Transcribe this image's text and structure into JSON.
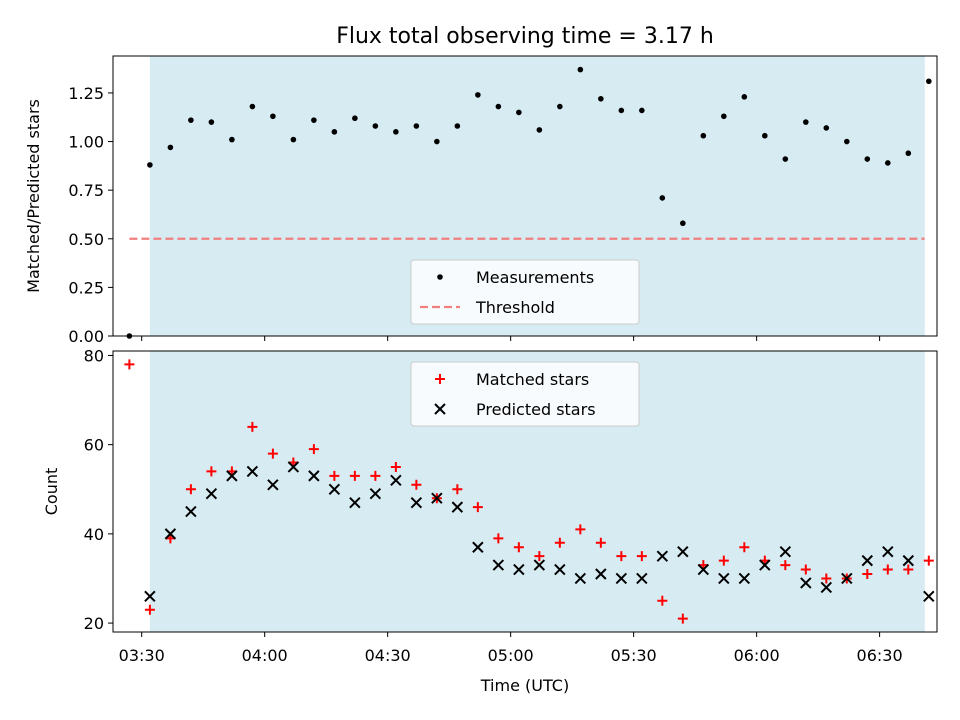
{
  "title": "Flux total observing time = 3.17 h",
  "colors": {
    "shade": "#add8e6",
    "measurement": "#000000",
    "threshold": "#f08080",
    "matched": "#ff0000",
    "predicted": "#000000"
  },
  "chart_data": [
    {
      "type": "scatter",
      "id": "ratio",
      "title": "Flux total observing time = 3.17 h",
      "xlabel": "",
      "ylabel": "Matched/Predicted stars",
      "xlim": [
        "03:23",
        "06:44"
      ],
      "ylim": [
        0,
        1.44
      ],
      "grid": false,
      "legend": "lower-center",
      "shaded_interval": [
        "03:32",
        "06:41"
      ],
      "yticks": [
        0.0,
        0.25,
        0.5,
        0.75,
        1.0,
        1.25
      ],
      "ytick_labels": [
        "0.00",
        "0.25",
        "0.50",
        "0.75",
        "1.00",
        "1.25"
      ],
      "threshold": {
        "name": "Threshold",
        "value": 0.5,
        "x_range": [
          "03:27",
          "06:41"
        ]
      },
      "series": [
        {
          "name": "Measurements",
          "x": [
            "03:27",
            "03:32",
            "03:37",
            "03:42",
            "03:47",
            "03:52",
            "03:57",
            "04:02",
            "04:07",
            "04:12",
            "04:17",
            "04:22",
            "04:27",
            "04:32",
            "04:37",
            "04:42",
            "04:47",
            "04:52",
            "04:57",
            "05:02",
            "05:07",
            "05:12",
            "05:17",
            "05:22",
            "05:27",
            "05:32",
            "05:37",
            "05:42",
            "05:47",
            "05:52",
            "05:57",
            "06:02",
            "06:07",
            "06:12",
            "06:17",
            "06:22",
            "06:27",
            "06:32",
            "06:37",
            "06:42"
          ],
          "y": [
            0.0,
            0.88,
            0.97,
            1.11,
            1.1,
            1.01,
            1.18,
            1.13,
            1.01,
            1.11,
            1.05,
            1.12,
            1.08,
            1.05,
            1.08,
            1.0,
            1.08,
            1.24,
            1.18,
            1.15,
            1.06,
            1.18,
            1.37,
            1.22,
            1.16,
            1.16,
            0.71,
            0.58,
            1.03,
            1.13,
            1.23,
            1.03,
            0.91,
            1.1,
            1.07,
            1.0,
            0.91,
            0.89,
            0.94,
            1.31
          ]
        }
      ]
    },
    {
      "type": "scatter",
      "id": "counts",
      "xlabel": "Time (UTC)",
      "ylabel": "Count",
      "xlim": [
        "03:23",
        "06:44"
      ],
      "ylim": [
        18,
        81
      ],
      "grid": false,
      "legend": "upper-center",
      "shaded_interval": [
        "03:32",
        "06:41"
      ],
      "yticks": [
        20,
        40,
        60,
        80
      ],
      "ytick_labels": [
        "20",
        "40",
        "60",
        "80"
      ],
      "xticks": [
        "03:30",
        "04:00",
        "04:30",
        "05:00",
        "05:30",
        "06:00",
        "06:30"
      ],
      "series": [
        {
          "name": "Matched stars",
          "x": [
            "03:27",
            "03:32",
            "03:37",
            "03:42",
            "03:47",
            "03:52",
            "03:57",
            "04:02",
            "04:07",
            "04:12",
            "04:17",
            "04:22",
            "04:27",
            "04:32",
            "04:37",
            "04:42",
            "04:47",
            "04:52",
            "04:57",
            "05:02",
            "05:07",
            "05:12",
            "05:17",
            "05:22",
            "05:27",
            "05:32",
            "05:37",
            "05:42",
            "05:47",
            "05:52",
            "05:57",
            "06:02",
            "06:07",
            "06:12",
            "06:17",
            "06:22",
            "06:27",
            "06:32",
            "06:37",
            "06:42"
          ],
          "y": [
            78,
            23,
            39,
            50,
            54,
            54,
            64,
            58,
            56,
            59,
            53,
            53,
            53,
            55,
            51,
            48,
            50,
            46,
            39,
            37,
            35,
            38,
            41,
            38,
            35,
            35,
            25,
            21,
            33,
            34,
            37,
            34,
            33,
            32,
            30,
            30,
            31,
            32,
            32,
            34
          ]
        },
        {
          "name": "Predicted stars",
          "x": [
            "03:32",
            "03:37",
            "03:42",
            "03:47",
            "03:52",
            "03:57",
            "04:02",
            "04:07",
            "04:12",
            "04:17",
            "04:22",
            "04:27",
            "04:32",
            "04:37",
            "04:42",
            "04:47",
            "04:52",
            "04:57",
            "05:02",
            "05:07",
            "05:12",
            "05:17",
            "05:22",
            "05:27",
            "05:32",
            "05:37",
            "05:42",
            "05:47",
            "05:52",
            "05:57",
            "06:02",
            "06:07",
            "06:12",
            "06:17",
            "06:22",
            "06:27",
            "06:32",
            "06:37",
            "06:42"
          ],
          "y": [
            26,
            40,
            45,
            49,
            53,
            54,
            51,
            55,
            53,
            50,
            47,
            49,
            52,
            47,
            48,
            46,
            37,
            33,
            32,
            33,
            32,
            30,
            31,
            30,
            30,
            35,
            36,
            32,
            30,
            30,
            33,
            36,
            29,
            28,
            30,
            34,
            36,
            34,
            26
          ]
        }
      ]
    }
  ]
}
